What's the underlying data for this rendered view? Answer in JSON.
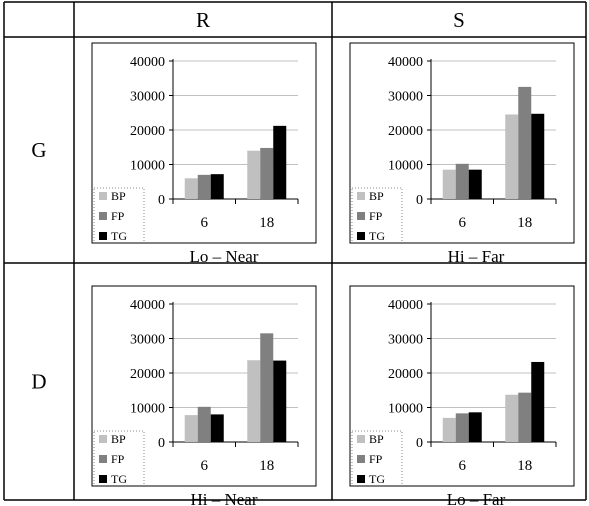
{
  "column_headers": [
    "R",
    "S"
  ],
  "row_headers": [
    "G",
    "D"
  ],
  "colors": {
    "BP": "#c0c0c0",
    "FP": "#808080",
    "TG": "#000000",
    "gridline": "#c0c0c0",
    "border": "#000000"
  },
  "chart_data": [
    {
      "type": "bar",
      "row": "G",
      "column": "R",
      "caption": "Lo – Near",
      "categories": [
        "6",
        "18"
      ],
      "series": [
        {
          "name": "BP",
          "values": [
            6000,
            14000
          ]
        },
        {
          "name": "FP",
          "values": [
            7000,
            14800
          ]
        },
        {
          "name": "TG",
          "values": [
            7200,
            21200
          ]
        }
      ],
      "ylim": [
        0,
        40000
      ],
      "yticks": [
        "0",
        "10000",
        "20000",
        "30000",
        "40000"
      ],
      "grid": true,
      "legend": "bottom-left"
    },
    {
      "type": "bar",
      "row": "G",
      "column": "S",
      "caption": "Hi – Far",
      "categories": [
        "6",
        "18"
      ],
      "series": [
        {
          "name": "BP",
          "values": [
            8500,
            24500
          ]
        },
        {
          "name": "FP",
          "values": [
            10200,
            32500
          ]
        },
        {
          "name": "TG",
          "values": [
            8500,
            24700
          ]
        }
      ],
      "ylim": [
        0,
        40000
      ],
      "yticks": [
        "0",
        "10000",
        "20000",
        "30000",
        "40000"
      ],
      "grid": true,
      "legend": "bottom-left"
    },
    {
      "type": "bar",
      "row": "D",
      "column": "R",
      "caption": "Hi – Near",
      "categories": [
        "6",
        "18"
      ],
      "series": [
        {
          "name": "BP",
          "values": [
            7800,
            23700
          ]
        },
        {
          "name": "FP",
          "values": [
            10200,
            31500
          ]
        },
        {
          "name": "TG",
          "values": [
            8000,
            23600
          ]
        }
      ],
      "ylim": [
        0,
        40000
      ],
      "yticks": [
        "0",
        "10000",
        "20000",
        "30000",
        "40000"
      ],
      "grid": true,
      "legend": "bottom-left"
    },
    {
      "type": "bar",
      "row": "D",
      "column": "S",
      "caption": "Lo – Far",
      "categories": [
        "6",
        "18"
      ],
      "series": [
        {
          "name": "BP",
          "values": [
            7000,
            13700
          ]
        },
        {
          "name": "FP",
          "values": [
            8300,
            14300
          ]
        },
        {
          "name": "TG",
          "values": [
            8600,
            23200
          ]
        }
      ],
      "ylim": [
        0,
        40000
      ],
      "yticks": [
        "0",
        "10000",
        "20000",
        "30000",
        "40000"
      ],
      "grid": true,
      "legend": "bottom-left"
    }
  ]
}
